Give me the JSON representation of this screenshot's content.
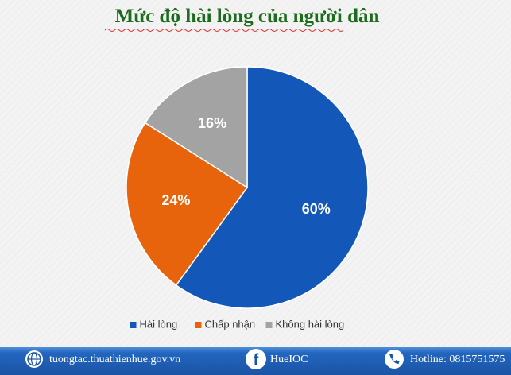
{
  "chart_data": {
    "type": "pie",
    "title": "Mức độ hài lòng của người dân",
    "categories": [
      "Hài lòng",
      "Chấp nhận",
      "Không hài lòng"
    ],
    "values": [
      60,
      24,
      16
    ],
    "value_labels": [
      "60%",
      "24%",
      "16%"
    ],
    "colors": [
      "#1357b8",
      "#e8640c",
      "#a3a3a3"
    ],
    "legend": "bottom"
  },
  "footer": {
    "website": "tuongtac.thuathienhue.gov.vn",
    "app": "HueIOC",
    "hotline": "Hotline: 0815751575"
  }
}
